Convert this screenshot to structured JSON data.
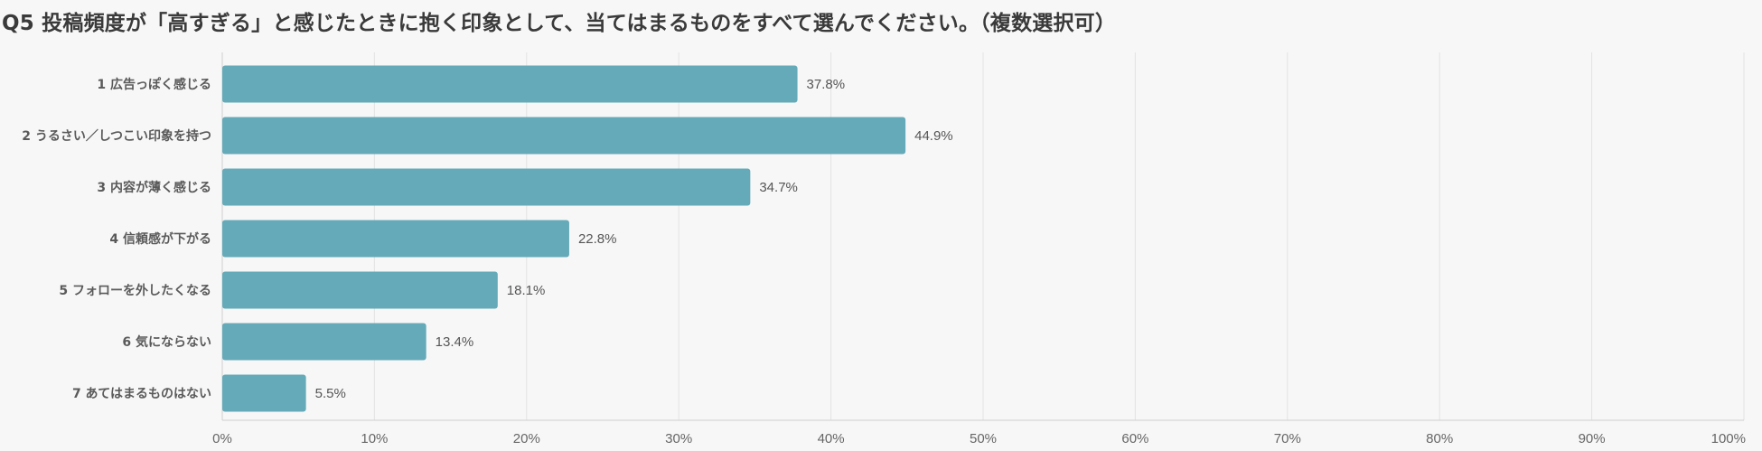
{
  "title": "Q5 投稿頻度が「高すぎる」と感じたときに抱く印象として、当てはまるものをすべて選んでください。（複数選択可）",
  "colors": {
    "bar": "#64aab8",
    "grid": "#e3e3e3",
    "axis": "#cfcfcf",
    "background": "#f7f7f7"
  },
  "chart_data": {
    "type": "bar",
    "orientation": "horizontal",
    "title": "Q5 投稿頻度が「高すぎる」と感じたときに抱く印象として、当てはまるものをすべて選んでください。（複数選択可）",
    "categories": [
      "1 広告っぽく感じる",
      "2 うるさい／しつこい印象を持つ",
      "3 内容が薄く感じる",
      "4 信頼感が下がる",
      "5 フォローを外したくなる",
      "6 気にならない",
      "7 あてはまるものはない"
    ],
    "values": [
      37.8,
      44.9,
      34.7,
      22.8,
      18.1,
      13.4,
      5.5
    ],
    "value_labels": [
      "37.8%",
      "44.9%",
      "34.7%",
      "22.8%",
      "18.1%",
      "13.4%",
      "5.5%"
    ],
    "xlim": [
      0,
      100
    ],
    "x_ticks": [
      "0%",
      "10%",
      "20%",
      "30%",
      "40%",
      "50%",
      "60%",
      "70%",
      "80%",
      "90%",
      "100%"
    ],
    "xlabel": "",
    "ylabel": "",
    "grid": true,
    "legend": false
  }
}
